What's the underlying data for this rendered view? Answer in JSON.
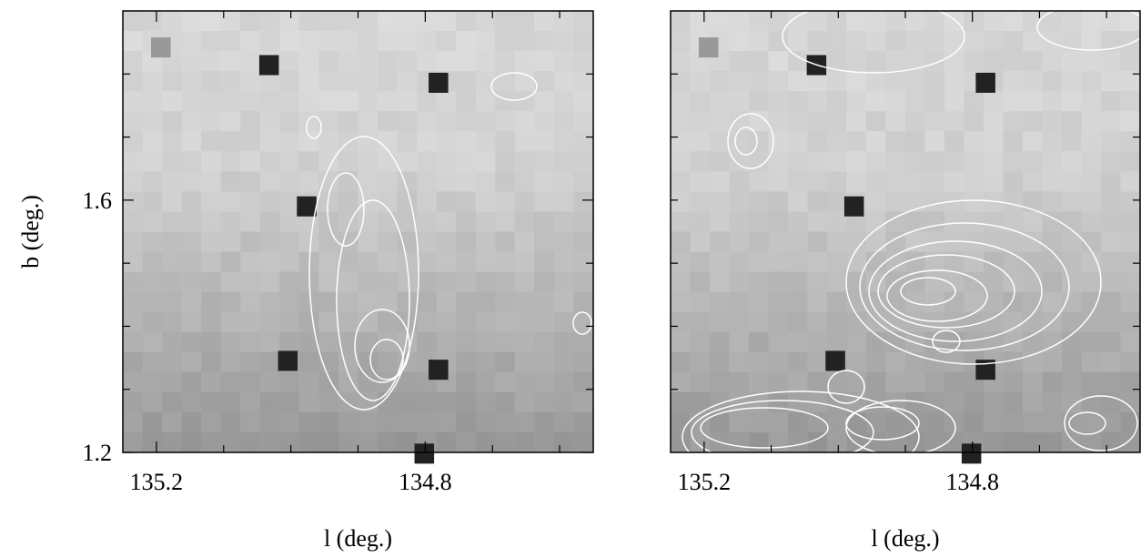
{
  "chart_data": [
    {
      "type": "image",
      "xlabel": "l (deg.)",
      "ylabel": "b (deg.)",
      "xlim": [
        135.25,
        134.55
      ],
      "ylim": [
        1.2,
        1.9
      ],
      "xticks": [
        135.2,
        134.8
      ],
      "yticks": [
        1.2,
        1.6
      ],
      "xminorticks": [
        135.1,
        135.0,
        134.9,
        134.7,
        134.6
      ],
      "yminorticks": [
        1.3,
        1.4,
        1.5,
        1.7,
        1.8
      ]
    },
    {
      "type": "image",
      "xlabel": "l (deg.)",
      "xlim": [
        135.25,
        134.55
      ],
      "ylim": [
        1.2,
        1.9
      ],
      "xticks": [
        135.2,
        134.8
      ],
      "xminorticks": [
        135.1,
        135.0,
        134.9,
        134.7,
        134.6
      ],
      "yminorticks": [
        1.3,
        1.4,
        1.5,
        1.6,
        1.7,
        1.8
      ]
    }
  ]
}
